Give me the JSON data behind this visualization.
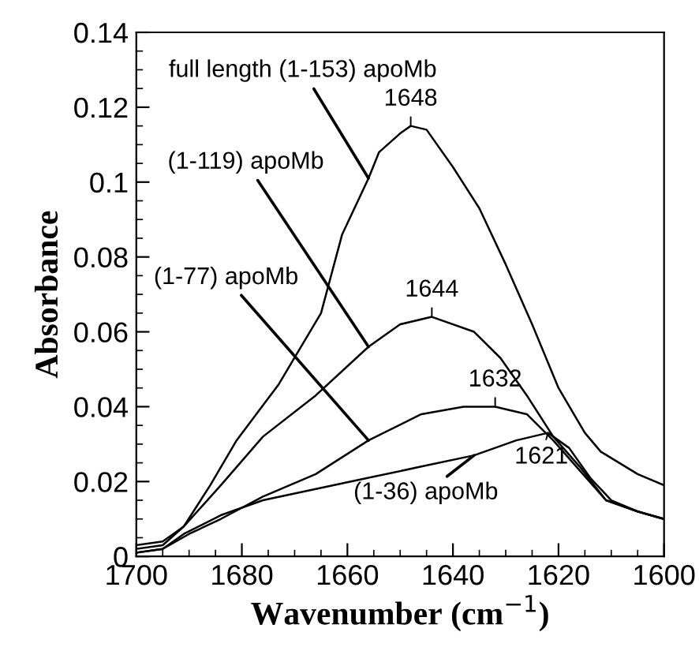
{
  "chart_data": {
    "type": "line",
    "xlabel": "Wavenumber (cm$^{−1}$)",
    "ylabel": "Absorbance",
    "xlim": [
      1700,
      1600
    ],
    "xticks": [
      1700,
      1680,
      1660,
      1640,
      1620,
      1600
    ],
    "ylim": [
      0,
      0.14
    ],
    "yticks": [
      0,
      0.02,
      0.04,
      0.06,
      0.08,
      {
        "value": 0.1,
        "label": "0.1"
      },
      0.12,
      0.14
    ],
    "grid": false,
    "legend": false,
    "marker": "none",
    "line_style": "solid",
    "series": [
      {
        "color": "#000000",
        "x": [
          1700,
          1695,
          1691,
          1686,
          1681,
          1673,
          1665,
          1661,
          1656,
          1654,
          1650,
          1648,
          1645,
          1640,
          1635,
          1630,
          1625,
          1620,
          1615,
          1612,
          1605,
          1600
        ],
        "values": [
          0.003,
          0.004,
          0.008,
          0.019,
          0.031,
          0.046,
          0.065,
          0.086,
          0.101,
          0.108,
          0.113,
          0.115,
          0.114,
          0.104,
          0.093,
          0.078,
          0.062,
          0.045,
          0.033,
          0.028,
          0.022,
          0.019
        ]
      },
      {
        "color": "#000000",
        "x": [
          1700,
          1695,
          1691,
          1684,
          1676,
          1666,
          1656,
          1650,
          1644,
          1636,
          1631,
          1626,
          1621,
          1616,
          1611,
          1605,
          1600
        ],
        "values": [
          0.002,
          0.003,
          0.008,
          0.019,
          0.032,
          0.043,
          0.056,
          0.062,
          0.064,
          0.06,
          0.053,
          0.043,
          0.032,
          0.024,
          0.015,
          0.012,
          0.01
        ]
      },
      {
        "color": "#000000",
        "x": [
          1700,
          1695,
          1690,
          1684,
          1676,
          1666,
          1656,
          1646,
          1638,
          1632,
          1626,
          1621,
          1616,
          1611,
          1605,
          1600
        ],
        "values": [
          0.001,
          0.002,
          0.006,
          0.01,
          0.016,
          0.022,
          0.031,
          0.038,
          0.04,
          0.04,
          0.038,
          0.031,
          0.023,
          0.015,
          0.012,
          0.01
        ]
      },
      {
        "color": "#000000",
        "x": [
          1700,
          1695,
          1691,
          1684,
          1676,
          1666,
          1656,
          1646,
          1636,
          1628,
          1622,
          1618,
          1614,
          1610,
          1605,
          1600
        ],
        "values": [
          0.001,
          0.002,
          0.006,
          0.011,
          0.015,
          0.018,
          0.021,
          0.024,
          0.027,
          0.031,
          0.033,
          0.029,
          0.021,
          0.015,
          0.012,
          0.01
        ]
      }
    ],
    "annotations": [
      {
        "text": "full length (1-153) apoMb",
        "x": 1656,
        "y": 0.101
      },
      {
        "text": "(1-119) apoMb",
        "x": 1656,
        "y": 0.056
      },
      {
        "text": "(1-77) apoMb",
        "x": 1656,
        "y": 0.031
      },
      {
        "text": "(1-36) apoMb",
        "x": 1636,
        "y": 0.027
      },
      {
        "text": "1648",
        "x": 1648,
        "y": 0.115
      },
      {
        "text": "1644",
        "x": 1644,
        "y": 0.064
      },
      {
        "text": "1632",
        "x": 1632,
        "y": 0.04
      },
      {
        "text": "1621",
        "x": 1622,
        "y": 0.033
      }
    ]
  }
}
